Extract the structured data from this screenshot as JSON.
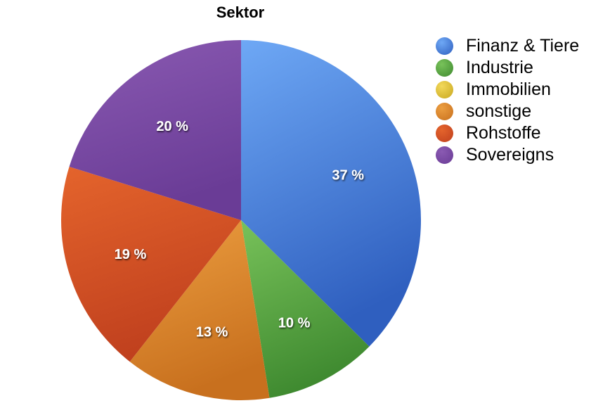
{
  "chart_data": {
    "type": "pie",
    "title": "Sektor",
    "legend_position": "right",
    "categories": [
      "Finanz & Tiere",
      "Industrie",
      "Immobilien",
      "sonstige",
      "Rohstoffe",
      "Sovereigns"
    ],
    "values": [
      37,
      10,
      0,
      13,
      19,
      20
    ],
    "labels": [
      "37 %",
      "10 %",
      "",
      "13 %",
      "19 %",
      "20 %"
    ],
    "colors": [
      "#4a86e0",
      "#5aaa46",
      "#e8c83a",
      "#e08a2e",
      "#d8502a",
      "#7f4fa8"
    ],
    "colors_light": [
      "#6ea8f5",
      "#78c25a",
      "#f2d85a",
      "#ec9e40",
      "#e4642c",
      "#8a5ab2"
    ],
    "colors_dark": [
      "#2f5fbf",
      "#3f8a30",
      "#c9a820",
      "#c8701e",
      "#c0401e",
      "#6a3c96"
    ]
  }
}
